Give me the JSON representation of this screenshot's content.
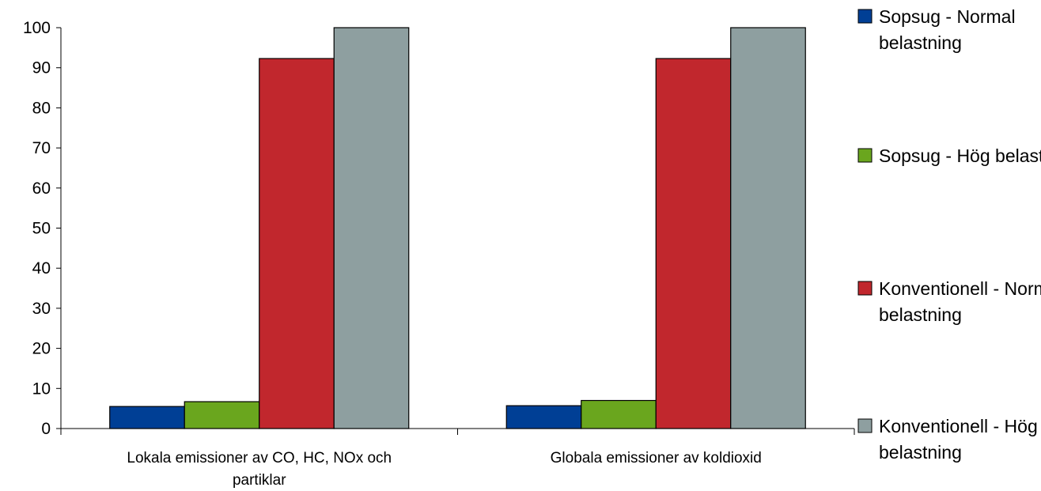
{
  "chart_data": {
    "type": "bar",
    "categories": [
      [
        "Lokala emissioner av CO, HC, NOx och",
        "partiklar"
      ],
      [
        "Globala emissioner av koldioxid"
      ]
    ],
    "series": [
      {
        "name": [
          "Sopsug - Normal",
          "belastning"
        ],
        "color": "#003f95",
        "values": [
          5.5,
          5.7
        ]
      },
      {
        "name": [
          "Sopsug - Hög belastning"
        ],
        "color": "#6aa61e",
        "values": [
          6.7,
          7.0
        ]
      },
      {
        "name": [
          "Konventionell - Normal",
          "belastning"
        ],
        "color": "#c1272d",
        "values": [
          92.3,
          92.3
        ]
      },
      {
        "name": [
          "Konventionell - Hög",
          "belastning"
        ],
        "color": "#8e9fa0",
        "values": [
          100,
          100
        ]
      }
    ],
    "ylim": [
      0,
      100
    ],
    "yticks": [
      0,
      10,
      20,
      30,
      40,
      50,
      60,
      70,
      80,
      90,
      100
    ],
    "title": "",
    "xlabel": "",
    "ylabel": "",
    "grid": false,
    "legend_position": "right"
  }
}
